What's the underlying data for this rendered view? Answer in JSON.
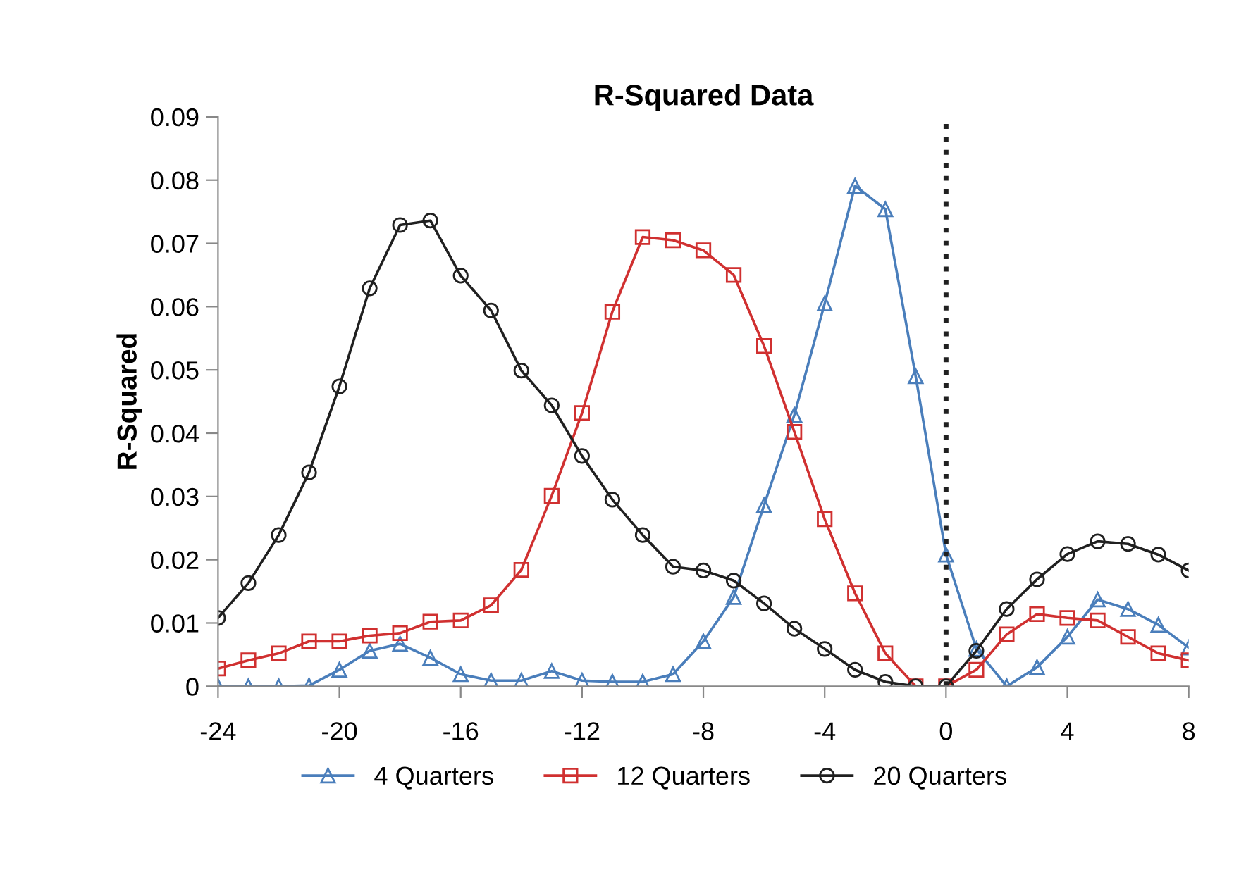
{
  "chart_data": {
    "type": "line",
    "title": "R-Squared Data",
    "ylabel": "R-Squared",
    "x": [
      -24,
      -23,
      -22,
      -21,
      -20,
      -19,
      -18,
      -17,
      -16,
      -15,
      -14,
      -13,
      -12,
      -11,
      -10,
      -9,
      -8,
      -7,
      -6,
      -5,
      -4,
      -3,
      -2,
      -1,
      0,
      1,
      2,
      3,
      4,
      5,
      6,
      7,
      8
    ],
    "series": [
      {
        "name": "4 Quarters",
        "color": "#4a7ebb",
        "marker": "triangle",
        "values": [
          0,
          0,
          0,
          0.0001,
          0.0026,
          0.0056,
          0.0067,
          0.0045,
          0.0019,
          0.0009,
          0.0009,
          0.0024,
          0.0009,
          0.0007,
          0.0007,
          0.0019,
          0.0071,
          0.0141,
          0.0286,
          0.0429,
          0.0605,
          0.0791,
          0.0754,
          0.049,
          0.0208,
          0.0059,
          0,
          0.003,
          0.0078,
          0.0137,
          0.0122,
          0.0097,
          0.0061
        ]
      },
      {
        "name": "12 Quarters",
        "color": "#d03030",
        "marker": "square",
        "values": [
          0.0028,
          0.0041,
          0.0052,
          0.0071,
          0.0071,
          0.008,
          0.0084,
          0.0102,
          0.0104,
          0.0128,
          0.0184,
          0.0301,
          0.0432,
          0.0592,
          0.071,
          0.0705,
          0.0689,
          0.065,
          0.0538,
          0.0402,
          0.0264,
          0.0147,
          0.0052,
          0,
          0,
          0.0026,
          0.0082,
          0.0114,
          0.0108,
          0.0104,
          0.0078,
          0.0052,
          0.0041
        ]
      },
      {
        "name": "20 Quarters",
        "color": "#202020",
        "marker": "circle",
        "values": [
          0.0108,
          0.0163,
          0.0239,
          0.0338,
          0.0474,
          0.0629,
          0.0729,
          0.0736,
          0.0649,
          0.0594,
          0.0499,
          0.0444,
          0.0364,
          0.0295,
          0.0239,
          0.0189,
          0.0183,
          0.0167,
          0.0131,
          0.0091,
          0.0059,
          0.0026,
          0.0007,
          0,
          0,
          0.0056,
          0.0122,
          0.0169,
          0.0209,
          0.0229,
          0.0225,
          0.0208,
          0.0183
        ]
      }
    ],
    "xlim": [
      -24,
      8
    ],
    "xticks": [
      -24,
      -20,
      -16,
      -12,
      -8,
      -4,
      0,
      4,
      8
    ],
    "ylim": [
      0,
      0.09
    ],
    "yticks": [
      0,
      0.01,
      0.02,
      0.03,
      0.04,
      0.05,
      0.06,
      0.07,
      0.08,
      0.09
    ],
    "ref_lines": [
      {
        "axis": "x",
        "value": 0,
        "color": "#202020",
        "line_style": "dotted"
      }
    ],
    "grid": false,
    "legend": "bottom",
    "line_style": "solid"
  }
}
